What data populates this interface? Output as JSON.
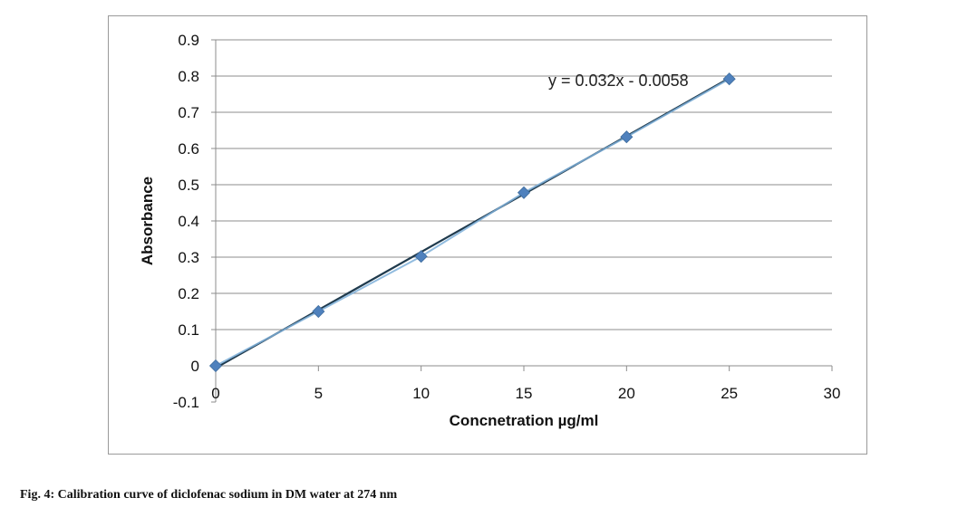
{
  "chart_data": {
    "type": "scatter",
    "title": "",
    "xlabel": "Concnetration µg/ml",
    "ylabel": "Absorbance",
    "xlim": [
      0,
      30
    ],
    "ylim": [
      -0.1,
      0.9
    ],
    "x_ticks": [
      "0",
      "5",
      "10",
      "15",
      "20",
      "25",
      "30"
    ],
    "y_ticks": [
      "-0.1",
      "0",
      "0.1",
      "0.2",
      "0.3",
      "0.4",
      "0.5",
      "0.6",
      "0.7",
      "0.8",
      "0.9"
    ],
    "grid": "horizontal",
    "series": [
      {
        "x": [
          0,
          5,
          10,
          15,
          20,
          25
        ],
        "y": [
          0.0,
          0.15,
          0.302,
          0.478,
          0.632,
          0.792
        ],
        "color": "#4f81bd",
        "marker": "diamond"
      }
    ],
    "trendline": {
      "equation": "y = 0.032x - 0.0058",
      "slope": 0.032,
      "intercept": -0.0058,
      "color": "#1f3a4d"
    }
  },
  "caption": "Fig. 4: Calibration curve of diclofenac sodium in DM water at 274 nm"
}
